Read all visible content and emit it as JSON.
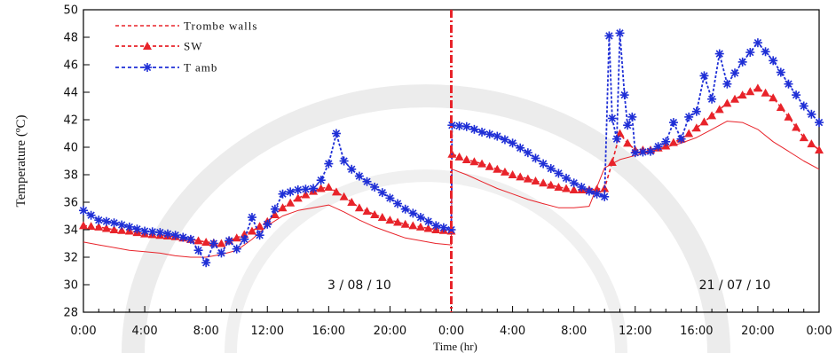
{
  "chart_data": {
    "type": "line",
    "ylabel": "Temperature (ºC)",
    "xlabel": "Time (hr)",
    "ylim": [
      28,
      50
    ],
    "yticks": [
      28,
      30,
      32,
      34,
      36,
      38,
      40,
      42,
      44,
      46,
      48,
      50
    ],
    "xlim": [
      0,
      48
    ],
    "xticks": [
      0,
      4,
      8,
      12,
      16,
      20,
      24,
      28,
      32,
      36,
      40,
      44,
      48
    ],
    "xtick_labels": [
      "0:00",
      "4:00",
      "8:00",
      "12:00",
      "16:00",
      "20:00",
      "0:00",
      "4:00",
      "8:00",
      "12:00",
      "16:00",
      "20:00",
      "0:00"
    ],
    "divider_x": 24,
    "day_labels": [
      {
        "text": "3 / 08 / 10",
        "x": 18,
        "y": 30
      },
      {
        "text": "21 / 07 / 10",
        "x": 42.5,
        "y": 30
      }
    ],
    "legend_position": "top-left",
    "colors": {
      "trombe": "#e8232a",
      "sw": "#e8232a",
      "tamb": "#1f2fd6",
      "divider": "#e8232a"
    },
    "series": [
      {
        "name": "Trombe walls",
        "marker": "none",
        "x": [
          0,
          1,
          2,
          3,
          4,
          5,
          6,
          7,
          7.5,
          8,
          9,
          10,
          11,
          12,
          13,
          14,
          15,
          16,
          17,
          18,
          19,
          20,
          21,
          22,
          23,
          24,
          24.05,
          25,
          26,
          27,
          28,
          29,
          30,
          31,
          32,
          33,
          34,
          35,
          36,
          37,
          38,
          39,
          40,
          41,
          42,
          43,
          44,
          45,
          46,
          47,
          48
        ],
        "y": [
          33.1,
          32.9,
          32.7,
          32.5,
          32.4,
          32.3,
          32.1,
          32.0,
          32.0,
          32.0,
          32.2,
          32.5,
          33.3,
          34.3,
          35.0,
          35.4,
          35.6,
          35.8,
          35.3,
          34.7,
          34.2,
          33.8,
          33.4,
          33.2,
          33.0,
          32.9,
          38.4,
          38.0,
          37.5,
          37.0,
          36.6,
          36.2,
          35.9,
          35.6,
          35.6,
          35.7,
          38.5,
          39.1,
          39.4,
          39.7,
          40.0,
          40.3,
          40.7,
          41.3,
          41.9,
          41.8,
          41.3,
          40.4,
          39.7,
          39.0,
          38.4
        ]
      },
      {
        "name": "SW",
        "marker": "triangle",
        "x": [
          0,
          1,
          2,
          3,
          4,
          5,
          6,
          7,
          8,
          9,
          10,
          11,
          12,
          13,
          14,
          15,
          15.5,
          16,
          17,
          18,
          19,
          20,
          21,
          22,
          23,
          24,
          24.05,
          25,
          26,
          27,
          28,
          29,
          30,
          31,
          32,
          33,
          34,
          34.5,
          35,
          35.5,
          36,
          37,
          38,
          39,
          40,
          41,
          42,
          43,
          44,
          45,
          46,
          47,
          48
        ],
        "y": [
          34.3,
          34.2,
          34.0,
          33.9,
          33.7,
          33.6,
          33.5,
          33.3,
          33.1,
          33.0,
          33.4,
          33.9,
          34.6,
          35.6,
          36.3,
          36.8,
          37.0,
          37.1,
          36.4,
          35.6,
          35.1,
          34.7,
          34.4,
          34.2,
          34.0,
          33.9,
          39.5,
          39.1,
          38.8,
          38.4,
          38.0,
          37.7,
          37.4,
          37.1,
          36.9,
          36.9,
          37.0,
          38.9,
          41.0,
          40.3,
          39.8,
          39.8,
          40.1,
          40.6,
          41.4,
          42.3,
          43.2,
          43.8,
          44.3,
          43.6,
          42.2,
          40.7,
          39.8
        ]
      },
      {
        "name": "T amb",
        "marker": "star",
        "x": [
          0,
          1,
          2,
          3,
          4,
          5,
          6,
          7,
          7.5,
          8,
          8.5,
          9,
          9.5,
          10,
          10.5,
          11,
          11.5,
          12,
          13,
          14,
          15,
          15.5,
          16,
          16.5,
          17,
          17.5,
          18,
          19,
          20,
          21,
          22,
          23,
          24,
          24.05,
          25,
          26,
          27,
          28,
          29,
          30,
          31,
          32,
          33,
          34,
          34.3,
          34.5,
          34.8,
          35,
          35.3,
          35.5,
          35.8,
          36,
          37,
          38,
          38.5,
          39,
          39.5,
          40,
          40.5,
          41,
          41.5,
          42,
          43,
          44,
          45,
          46,
          47,
          48
        ],
        "y": [
          35.4,
          34.7,
          34.5,
          34.2,
          33.9,
          33.8,
          33.6,
          33.3,
          32.5,
          31.6,
          33.0,
          32.3,
          33.2,
          32.6,
          33.3,
          34.9,
          33.6,
          34.4,
          36.6,
          36.9,
          37.0,
          37.6,
          38.8,
          41.0,
          39.0,
          38.4,
          37.9,
          37.1,
          36.3,
          35.5,
          34.9,
          34.3,
          34.0,
          41.6,
          41.5,
          41.1,
          40.8,
          40.3,
          39.6,
          38.8,
          38.1,
          37.4,
          36.8,
          36.4,
          48.1,
          42.1,
          40.6,
          48.3,
          43.8,
          41.6,
          42.2,
          39.6,
          39.7,
          40.4,
          41.8,
          40.6,
          42.2,
          42.6,
          45.2,
          43.5,
          46.8,
          44.6,
          46.2,
          47.6,
          46.3,
          44.6,
          43.0,
          41.8
        ]
      }
    ]
  }
}
